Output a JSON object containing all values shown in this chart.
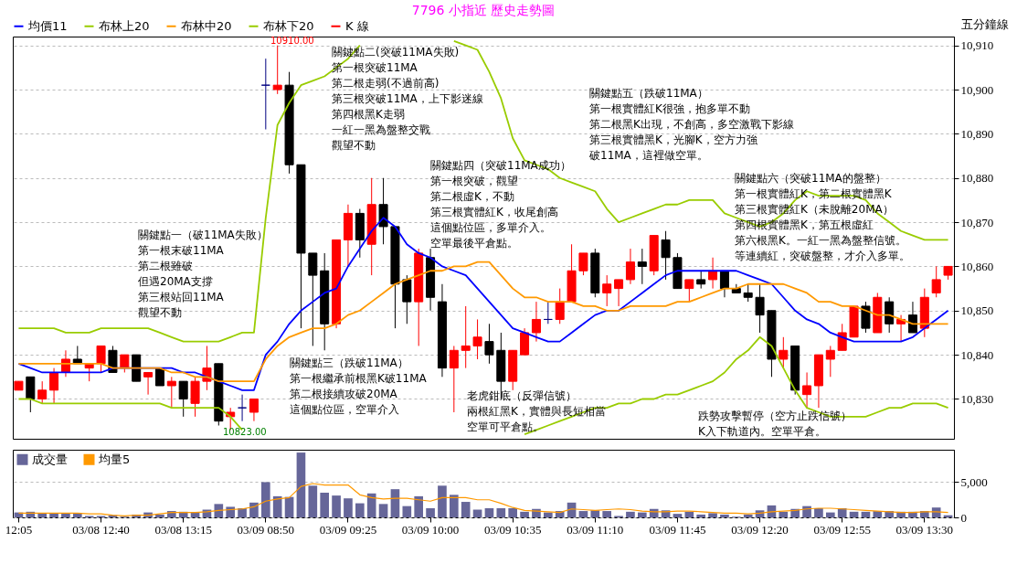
{
  "chart_data": [
    {
      "type": "candlestick",
      "title": "7796 小指近  歷史走勢圖",
      "subtitle": "五分鐘線",
      "categories": [
        null,
        null,
        null,
        null,
        null,
        null,
        null,
        null,
        null,
        null,
        null,
        null,
        null,
        null,
        null,
        null,
        null,
        null,
        null,
        null,
        null,
        null,
        null,
        null,
        null,
        null,
        null,
        null,
        null,
        null,
        null,
        null,
        null,
        null,
        null,
        null,
        null,
        null,
        null,
        null,
        null,
        null,
        null,
        null,
        null,
        null,
        null,
        null,
        null,
        null,
        null,
        null,
        null,
        null,
        null,
        null,
        null,
        null,
        null,
        null,
        null,
        null,
        null,
        null,
        null,
        null,
        null,
        null,
        null,
        null,
        null,
        null,
        null,
        null,
        null,
        null,
        null,
        null,
        null,
        null
      ],
      "tick_labels": "y",
      "ylim": [
        10821,
        10912
      ],
      "yticks": [
        {
          "value": 10830,
          "label": "10,830"
        },
        {
          "value": 10840,
          "label": "10,840"
        },
        {
          "value": 10850,
          "label": "10,850"
        },
        {
          "value": 10860,
          "label": "10,860"
        },
        {
          "value": 10870,
          "label": "10,870"
        },
        {
          "value": 10880,
          "label": "10,880"
        },
        {
          "value": 10890,
          "label": "10,890"
        },
        {
          "value": 10900,
          "label": "10,900"
        },
        {
          "value": 10910,
          "label": "10,910"
        }
      ],
      "grid": "y",
      "legend": "top",
      "annotations": [
        "關鍵點一（破11MA失敗）",
        "第一根末破11MA",
        "第二根雖破",
        "但遇20MA支撐",
        "第三根站回11MA",
        "觀望不動",
        "關鍵點二(突破11MA失敗)",
        "第一根突破11MA",
        "第二根走弱(不過前高)",
        "第三根突破11MA，上下影迷線",
        "第四根黑K走弱",
        "一紅一黑為盤整交戰",
        "觀望不動",
        "關鍵點三（跌破11MA）",
        "第一根繼承前根黑K破11MA",
        "第二根接續攻破20MA",
        "這個點位區，空單介入",
        "關鍵點四（突破11MA成功）",
        "第一根突破，觀望",
        "第二根虛K，不動",
        "第三根實體紅K，收尾創高",
        "這個點位區，多單介入。",
        "空單最後平倉點。",
        "老虎鉗底（反彈信號）",
        "兩根紅黑K，實體與長短相當",
        "空單可平倉點。",
        "關鍵點五（跌破11MA）",
        "第一根實體紅K很強，抱多單不動",
        "第二根黑K出現，不創高，多空激戰下影線",
        "第三根實體黑K，光腳K，空方力強",
        "破11MA，這裡做空單。",
        "關鍵點六（突破11MA的盤整）",
        "第一根實體紅K，第二根實體黑K",
        "第三根實體紅K（未脫離20MA）",
        "第四根實體黑K，第五根虛紅",
        "第六根黑K。一紅一黑為盤整信號。",
        "等連續紅，突破盤整，才介入多單。",
        "跌勢攻擊暫停（空方止跌信號）",
        "K入下軌道內。空單平倉。",
        "10910.00",
        "10823.00"
      ],
      "series": [
        {
          "type": "line",
          "name": "均價11",
          "color": "#0000ff",
          "values": [
            10838,
            10837,
            10836,
            10836,
            10836,
            10836,
            10836,
            10836,
            10837,
            10837,
            10837,
            10837,
            10837,
            10837,
            10836,
            10836,
            10835,
            10834,
            10833,
            10832,
            10832,
            10840,
            10843,
            10847,
            10850,
            10852,
            10854,
            10855,
            10860,
            10864,
            10868,
            10871,
            10869,
            10865,
            10863,
            10862,
            10860,
            10859,
            10858,
            10855,
            10852,
            10849,
            10846,
            10845,
            10844,
            10843,
            10843,
            10845,
            10847,
            10849,
            10850,
            10850,
            10852,
            10854,
            10856,
            10858,
            10859,
            10859,
            10859,
            10859,
            10859,
            10859,
            10858,
            10857,
            10856,
            10853,
            10850,
            10848,
            10847,
            10845,
            10844,
            10843,
            10843,
            10843,
            10843,
            10843,
            10844,
            10846,
            10848,
            10850
          ]
        },
        {
          "type": "line",
          "name": "布林上20",
          "color": "#99cc00",
          "values": [
            10846,
            10846,
            10846,
            10846,
            10845,
            10845,
            10845,
            10846,
            10846,
            10846,
            10846,
            10846,
            10845,
            10844,
            10843,
            10843,
            10843,
            10843,
            10844,
            10845,
            10845,
            10871,
            10892,
            10897,
            10901,
            10902,
            10903,
            10905,
            10907,
            10910,
            null,
            null,
            null,
            null,
            null,
            null,
            null,
            10911,
            10910,
            10909,
            10904,
            10898,
            10889,
            10884,
            10883,
            10882,
            10880,
            10879,
            10878,
            10877,
            10873,
            10870,
            10871,
            10872,
            10873,
            10874,
            10874,
            10875,
            10875,
            10875,
            10872,
            10871,
            10870,
            10869,
            10870,
            10872,
            10875,
            10877,
            10876,
            10876,
            10876,
            10876,
            10875,
            10872,
            10870,
            10868,
            10867,
            10866,
            10866,
            10866
          ]
        },
        {
          "type": "line",
          "name": "布林中20",
          "color": "#ff9900",
          "values": [
            10838,
            10838,
            10838,
            10838,
            10838,
            10838,
            10838,
            10838,
            10837,
            10837,
            10837,
            10837,
            10837,
            10836,
            10836,
            10835,
            10835,
            10834,
            10834,
            10834,
            10834,
            10839,
            10842,
            10844,
            10845,
            10846,
            10846,
            10847,
            10849,
            10850,
            10852,
            10854,
            10856,
            10857,
            10858,
            10859,
            10859,
            10860,
            10860,
            10861,
            10861,
            10858,
            10855,
            10853,
            10853,
            10852,
            10852,
            10852,
            10851,
            10851,
            10850,
            10850,
            10851,
            10851,
            10851,
            10851,
            10852,
            10852,
            10853,
            10854,
            10855,
            10855,
            10856,
            10856,
            10856,
            10856,
            10855,
            10854,
            10852,
            10852,
            10851,
            10851,
            10850,
            10849,
            10849,
            10848,
            10847,
            10847,
            10847,
            10847
          ]
        },
        {
          "type": "line",
          "name": "布林下20",
          "color": "#99cc00",
          "values": [
            10830,
            10830,
            10829,
            10829,
            10829,
            10829,
            10829,
            10829,
            10829,
            10829,
            10829,
            10829,
            10829,
            10828,
            10828,
            10828,
            10828,
            10828,
            10826,
            10823,
            null,
            null,
            null,
            null,
            null,
            null,
            null,
            null,
            null,
            null,
            null,
            null,
            null,
            null,
            null,
            null,
            null,
            null,
            null,
            null,
            null,
            null,
            null,
            10822,
            10823,
            10824,
            10825,
            10826,
            10827,
            10828,
            10828,
            10829,
            10829,
            10830,
            10830,
            10831,
            10831,
            10832,
            10833,
            10834,
            10836,
            10839,
            10841,
            10844,
            10842,
            10837,
            10832,
            10828,
            10827,
            10826,
            10826,
            10826,
            10826,
            10827,
            10828,
            10828,
            10829,
            10829,
            10829,
            10828
          ]
        },
        {
          "name": "K 線",
          "ohlc": [
            [
              10832,
              10834,
              10832,
              10834
            ],
            [
              10835,
              10835,
              10827,
              10830
            ],
            [
              10830,
              10834,
              10829,
              10832
            ],
            [
              10832,
              10837,
              10829,
              10836
            ],
            [
              10836,
              10841,
              10835,
              10839
            ],
            [
              10839,
              10842,
              10838,
              10838
            ],
            [
              10837,
              10838,
              10834,
              10838
            ],
            [
              10838,
              10842,
              10836,
              10842
            ],
            [
              10841,
              10842,
              10836,
              10836
            ],
            [
              10837,
              10840,
              10836,
              10840
            ],
            [
              10840,
              10840,
              10834,
              10834
            ],
            [
              10835,
              10836,
              10831,
              10836
            ],
            [
              10837,
              10837,
              10833,
              10833
            ],
            [
              10833,
              10835,
              10828,
              10834
            ],
            [
              10834,
              10834,
              10826,
              10830
            ],
            [
              10829,
              10835,
              10826,
              10834
            ],
            [
              10834,
              10842,
              10832,
              10837
            ],
            [
              10838,
              10838,
              10824,
              10825
            ],
            [
              10826,
              10828,
              10823,
              10827
            ],
            [
              10828,
              10831,
              10825,
              10828
            ],
            [
              10827,
              10830,
              10825,
              10830
            ],
            [
              10901,
              10907,
              10891,
              10901
            ],
            [
              10900,
              10910,
              10899,
              10901
            ],
            [
              10901,
              10904,
              10881,
              10883
            ],
            [
              10883,
              10883,
              10846,
              10863
            ],
            [
              10863,
              10863,
              10842,
              10858
            ],
            [
              10859,
              10863,
              10841,
              10847
            ],
            [
              10847,
              10866,
              10846,
              10866
            ],
            [
              10866,
              10874,
              10860,
              10872
            ],
            [
              10872,
              10873,
              10862,
              10866
            ],
            [
              10865,
              10880,
              10858,
              10874
            ],
            [
              10874,
              10880,
              10865,
              10869
            ],
            [
              10869,
              10869,
              10846,
              10856
            ],
            [
              10857,
              10858,
              10847,
              10852
            ],
            [
              10852,
              10864,
              10842,
              10863
            ],
            [
              10862,
              10864,
              10850,
              10853
            ],
            [
              10852,
              10856,
              10835,
              10837
            ],
            [
              10837,
              10842,
              10827,
              10841
            ],
            [
              10841,
              10851,
              10837,
              10842
            ],
            [
              10842,
              10848,
              10839,
              10844
            ],
            [
              10843,
              10847,
              10838,
              10840
            ],
            [
              10841,
              10845,
              10830,
              10834
            ],
            [
              10834,
              10841,
              10832,
              10841
            ],
            [
              10840,
              10846,
              10840,
              10845
            ],
            [
              10845,
              10852,
              10843,
              10848
            ],
            [
              10848,
              10852,
              10847,
              10848
            ],
            [
              10848,
              10855,
              10847,
              10852
            ],
            [
              10852,
              10865,
              10852,
              10859
            ],
            [
              10859,
              10863,
              10858,
              10863
            ],
            [
              10863,
              10864,
              10853,
              10854
            ],
            [
              10854,
              10858,
              10851,
              10856
            ],
            [
              10855,
              10857,
              10851,
              10857
            ],
            [
              10857,
              10864,
              10856,
              10861
            ],
            [
              10861,
              10864,
              10856,
              10860
            ],
            [
              10859,
              10867,
              10858,
              10867
            ],
            [
              10866,
              10868,
              10857,
              10862
            ],
            [
              10862,
              10863,
              10855,
              10855
            ],
            [
              10855,
              10857,
              10852,
              10857
            ],
            [
              10857,
              10859,
              10855,
              10856
            ],
            [
              10857,
              10862,
              10855,
              10859
            ],
            [
              10859,
              10859,
              10853,
              10855
            ],
            [
              10855,
              10856,
              10854,
              10854
            ],
            [
              10854,
              10856,
              10852,
              10853
            ],
            [
              10853,
              10856,
              10845,
              10849
            ],
            [
              10850,
              10850,
              10835,
              10839
            ],
            [
              10839,
              10844,
              10837,
              10841
            ],
            [
              10842,
              10842,
              10831,
              10832
            ],
            [
              10831,
              10836,
              10828,
              10833
            ],
            [
              10833,
              10840,
              10828,
              10840
            ],
            [
              10839,
              10842,
              10835,
              10841
            ],
            [
              10841,
              10847,
              10841,
              10845
            ],
            [
              10844,
              10851,
              10844,
              10851
            ],
            [
              10851,
              10852,
              10845,
              10846
            ],
            [
              10845,
              10854,
              10845,
              10853
            ],
            [
              10852,
              10853,
              10845,
              10847
            ],
            [
              10847,
              10849,
              10843,
              10848
            ],
            [
              10849,
              10852,
              10845,
              10845
            ],
            [
              10846,
              10855,
              10844,
              10853
            ],
            [
              10854,
              10860,
              10853,
              10857
            ],
            [
              10858,
              10860,
              10857,
              10860
            ]
          ],
          "colors": [
            "#ff0000",
            "#000000",
            "#ff0000",
            "#ff0000",
            "#ff0000",
            "#000000",
            "#ff0000",
            "#ff0000",
            "#000000",
            "#ff0000",
            "#000000",
            "#ff0000",
            "#000000",
            "#ff0000",
            "#000000",
            "#ff0000",
            "#ff0000",
            "#000000",
            "#ff0000",
            "#000080",
            "#ff0000",
            "#000080",
            "#ff0000",
            "#000000",
            "#000000",
            "#000000",
            "#000000",
            "#ff0000",
            "#ff0000",
            "#000000",
            "#ff0000",
            "#000000",
            "#000000",
            "#000000",
            "#ff0000",
            "#000000",
            "#000000",
            "#ff0000",
            "#ff0000",
            "#ff0000",
            "#000000",
            "#000000",
            "#ff0000",
            "#ff0000",
            "#ff0000",
            "#000080",
            "#ff0000",
            "#ff0000",
            "#ff0000",
            "#000000",
            "#ff0000",
            "#ff0000",
            "#ff0000",
            "#000000",
            "#ff0000",
            "#000000",
            "#000000",
            "#ff0000",
            "#000000",
            "#ff0000",
            "#000000",
            "#000000",
            "#000000",
            "#000000",
            "#000000",
            "#ff0000",
            "#000000",
            "#ff0000",
            "#ff0000",
            "#ff0000",
            "#ff0000",
            "#ff0000",
            "#000000",
            "#ff0000",
            "#000000",
            "#ff0000",
            "#000000",
            "#ff0000",
            "#ff0000",
            "#ff0000"
          ]
        }
      ]
    },
    {
      "type": "bar",
      "categories": [
        "12:05",
        null,
        null,
        null,
        null,
        null,
        null,
        "03/08 12:40",
        null,
        null,
        null,
        null,
        null,
        null,
        "03/08 13:15",
        null,
        null,
        null,
        null,
        null,
        null,
        "03/09 08:50",
        null,
        null,
        null,
        null,
        null,
        null,
        "03/09 09:25",
        null,
        null,
        null,
        null,
        null,
        null,
        "03/09 10:00",
        null,
        null,
        null,
        null,
        null,
        null,
        "03/09 10:35",
        null,
        null,
        null,
        null,
        null,
        null,
        "03/09 11:10",
        null,
        null,
        null,
        null,
        null,
        null,
        "03/09 11:45",
        null,
        null,
        null,
        null,
        null,
        null,
        "03/09 12:20",
        null,
        null,
        null,
        null,
        null,
        null,
        "03/09 12:55",
        null,
        null,
        null,
        null,
        null,
        null,
        "03/09 13:30",
        null,
        null
      ],
      "ylim": [
        0,
        9600
      ],
      "yticks": [
        0,
        {
          "value": 5000,
          "label": "5,000"
        }
      ],
      "grid": "y",
      "legend": "top left",
      "series": [
        {
          "name": "成交量",
          "color": "#666699",
          "values": [
            700,
            800,
            600,
            600,
            600,
            600,
            200,
            200,
            300,
            100,
            400,
            700,
            400,
            900,
            800,
            700,
            1100,
            1900,
            1500,
            1300,
            2100,
            5000,
            3000,
            2900,
            9200,
            4500,
            3500,
            3100,
            2700,
            2000,
            3400,
            1900,
            4000,
            1600,
            3000,
            1300,
            4500,
            3200,
            2200,
            1100,
            1300,
            1300,
            1300,
            800,
            1200,
            700,
            900,
            2100,
            900,
            1000,
            900,
            200,
            800,
            700,
            1200,
            1000,
            500,
            800,
            400,
            600,
            400,
            100,
            400,
            1000,
            1700,
            800,
            1200,
            1600,
            1300,
            700,
            1300,
            800,
            800,
            900,
            900,
            800,
            800,
            900,
            1400,
            300
          ]
        },
        {
          "type": "line",
          "name": "均量5",
          "color": "#ff9900",
          "values": [
            600,
            600,
            600,
            600,
            600,
            600,
            500,
            500,
            300,
            200,
            300,
            300,
            500,
            700,
            700,
            700,
            800,
            1000,
            1100,
            1200,
            1500,
            2300,
            2600,
            2800,
            4400,
            4800,
            4600,
            4600,
            4600,
            3200,
            2800,
            2600,
            2700,
            2700,
            2500,
            2300,
            2800,
            2800,
            2800,
            2500,
            2500,
            2000,
            1400,
            1000,
            900,
            800,
            700,
            1200,
            1100,
            1000,
            1100,
            1200,
            1100,
            900,
            800,
            800,
            900,
            900,
            800,
            700,
            600,
            600,
            500,
            600,
            800,
            900,
            1000,
            1200,
            1300,
            1300,
            1200,
            1100,
            1000,
            900,
            800,
            700,
            700,
            800,
            800,
            700
          ]
        }
      ]
    }
  ]
}
